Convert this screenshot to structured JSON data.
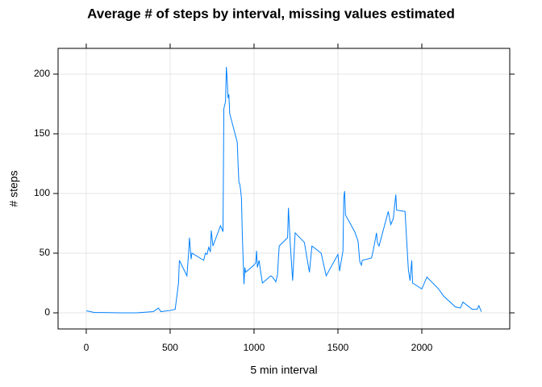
{
  "chart_data": {
    "type": "line",
    "title": "Average # of steps by interval, missing values estimated",
    "x_label": "5 min interval",
    "y_label": "# steps",
    "x": [
      0,
      50,
      100,
      200,
      300,
      400,
      430,
      445,
      500,
      530,
      550,
      555,
      600,
      610,
      615,
      625,
      630,
      700,
      710,
      720,
      730,
      740,
      745,
      755,
      800,
      815,
      820,
      830,
      835,
      840,
      845,
      850,
      855,
      900,
      905,
      910,
      915,
      920,
      925,
      930,
      935,
      940,
      945,
      950,
      1000,
      1010,
      1015,
      1020,
      1030,
      1040,
      1050,
      1100,
      1110,
      1130,
      1140,
      1145,
      1150,
      1200,
      1205,
      1215,
      1230,
      1245,
      1300,
      1330,
      1345,
      1400,
      1430,
      1500,
      1510,
      1530,
      1535,
      1540,
      1545,
      1600,
      1620,
      1630,
      1640,
      1645,
      1700,
      1710,
      1730,
      1735,
      1745,
      1800,
      1815,
      1830,
      1845,
      1850,
      1900,
      1910,
      1920,
      1930,
      1940,
      1945,
      2000,
      2030,
      2100,
      2130,
      2200,
      2230,
      2245,
      2300,
      2330,
      2340,
      2355
    ],
    "series": [
      {
        "name": "steps",
        "color": "#0080ff",
        "values": [
          1.7,
          0.3,
          0.3,
          0,
          0,
          1,
          4,
          1,
          2,
          3,
          25,
          44,
          31,
          50,
          63,
          45,
          50,
          44,
          50,
          49,
          55,
          51,
          69,
          56,
          73,
          68,
          171,
          177,
          206,
          195,
          180,
          183,
          167,
          143,
          124,
          109,
          108,
          103,
          96,
          66,
          45,
          24,
          38,
          34,
          40,
          42,
          52,
          38,
          44,
          34,
          25,
          31,
          30,
          26,
          32,
          45,
          56,
          63,
          88,
          60,
          27,
          67,
          59,
          34,
          56,
          50,
          31,
          49,
          35,
          52,
          97,
          102,
          82,
          68,
          60,
          43,
          40,
          44,
          46,
          52,
          67,
          59,
          56,
          85,
          74,
          79,
          99,
          86,
          85,
          60,
          36,
          27,
          44,
          25,
          20,
          30,
          20,
          14,
          5,
          4,
          9,
          3,
          3,
          6,
          1
        ]
      }
    ],
    "xlim": [
      -168,
      2524
    ],
    "ylim": [
      -13.5,
      221.6
    ],
    "xticks": [
      0,
      500,
      1000,
      1500,
      2000
    ],
    "yticks": [
      0,
      50,
      100,
      150,
      200
    ],
    "grid": true
  }
}
